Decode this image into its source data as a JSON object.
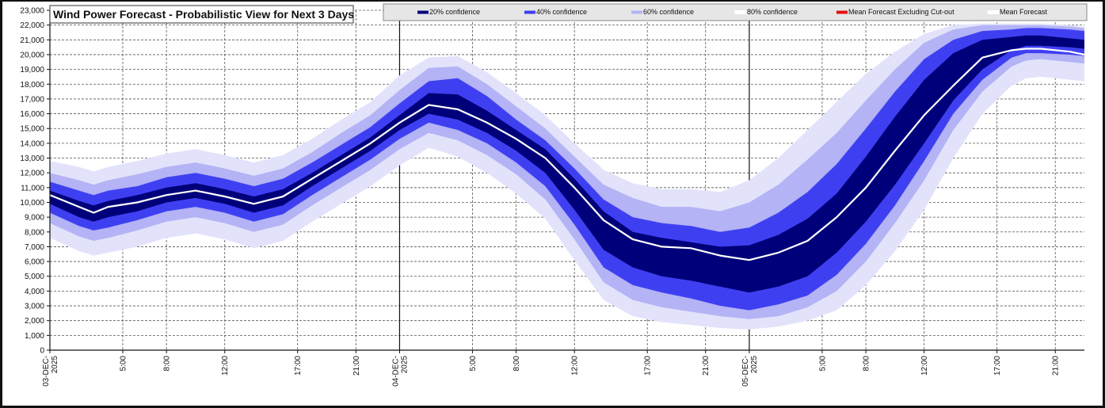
{
  "chart_data": {
    "type": "area",
    "title": "Wind Power Forecast - Probabilistic View for Next 3 Days",
    "xlabel": "",
    "ylabel": "",
    "ylim": [
      0,
      23000
    ],
    "yticks": [
      0,
      1000,
      2000,
      3000,
      4000,
      5000,
      6000,
      7000,
      8000,
      9000,
      10000,
      11000,
      12000,
      13000,
      14000,
      15000,
      16000,
      17000,
      18000,
      19000,
      20000,
      21000,
      22000,
      23000
    ],
    "xlim_hours": [
      0,
      71
    ],
    "x_ticks": [
      {
        "h": 0,
        "lines": [
          "03-DEC-",
          "2025"
        ]
      },
      {
        "h": 5,
        "lines": [
          "5:00"
        ]
      },
      {
        "h": 8,
        "lines": [
          "8:00"
        ]
      },
      {
        "h": 12,
        "lines": [
          "12:00"
        ]
      },
      {
        "h": 17,
        "lines": [
          "17:00"
        ]
      },
      {
        "h": 21,
        "lines": [
          "21:00"
        ]
      },
      {
        "h": 24,
        "lines": [
          "04-DEC-",
          "2025"
        ]
      },
      {
        "h": 29,
        "lines": [
          "5:00"
        ]
      },
      {
        "h": 32,
        "lines": [
          "8:00"
        ]
      },
      {
        "h": 36,
        "lines": [
          "12:00"
        ]
      },
      {
        "h": 41,
        "lines": [
          "17:00"
        ]
      },
      {
        "h": 45,
        "lines": [
          "21:00"
        ]
      },
      {
        "h": 48,
        "lines": [
          "05-DEC-",
          "2025"
        ]
      },
      {
        "h": 53,
        "lines": [
          "5:00"
        ]
      },
      {
        "h": 56,
        "lines": [
          "8:00"
        ]
      },
      {
        "h": 60,
        "lines": [
          "12:00"
        ]
      },
      {
        "h": 65,
        "lines": [
          "17:00"
        ]
      },
      {
        "h": 69,
        "lines": [
          "21:00"
        ]
      }
    ],
    "day_boundaries_h": [
      24,
      48
    ],
    "legend": [
      {
        "label": "20% confidence",
        "color": "#00007a"
      },
      {
        "label": "40% confidence",
        "color": "#3f3ff2"
      },
      {
        "label": "60% confidence",
        "color": "#b3b3f5"
      },
      {
        "label": "80% confidence",
        "color": "#ffffff"
      },
      {
        "label": "Mean Forecast Excluding Cut-out",
        "color": "#e01010"
      },
      {
        "label": "Mean Forecast",
        "color": "#ffffff"
      }
    ],
    "hours": [
      0,
      2,
      3,
      4,
      6,
      8,
      10,
      12,
      14,
      16,
      18,
      20,
      22,
      24,
      26,
      28,
      30,
      32,
      34,
      36,
      38,
      40,
      42,
      44,
      46,
      48,
      50,
      52,
      54,
      56,
      58,
      60,
      62,
      64,
      66,
      67,
      68,
      70,
      71
    ],
    "mean": [
      10500,
      9700,
      9300,
      9700,
      10000,
      10500,
      10800,
      10400,
      9900,
      10400,
      11600,
      12800,
      14000,
      15400,
      16600,
      16300,
      15400,
      14300,
      13000,
      11000,
      8800,
      7500,
      7000,
      6900,
      6400,
      6100,
      6600,
      7400,
      9000,
      11000,
      13500,
      15900,
      17900,
      19800,
      20300,
      20400,
      20400,
      20200,
      20000
    ],
    "series": [
      {
        "name": "20% confidence",
        "lower": [
          9900,
          9000,
          8700,
          9000,
          9400,
          10000,
          10300,
          9900,
          9300,
          9800,
          11100,
          12300,
          13500,
          14900,
          16000,
          15600,
          14700,
          13500,
          12000,
          9500,
          6800,
          5600,
          5000,
          4700,
          4300,
          3900,
          4300,
          5000,
          6600,
          8700,
          11200,
          14000,
          16900,
          19000,
          20300,
          20600,
          20600,
          20500,
          20400
        ],
        "upper": [
          10800,
          10100,
          9800,
          10100,
          10500,
          11000,
          11300,
          10900,
          10400,
          10900,
          12000,
          13200,
          14400,
          15900,
          17400,
          17300,
          16200,
          14900,
          13600,
          11600,
          9400,
          8000,
          7600,
          7300,
          7000,
          7100,
          7800,
          8900,
          10600,
          13100,
          15800,
          18300,
          20100,
          21000,
          21200,
          21300,
          21300,
          21100,
          21000
        ]
      },
      {
        "name": "40% confidence",
        "lower": [
          9300,
          8400,
          8100,
          8300,
          8800,
          9400,
          9700,
          9300,
          8700,
          9200,
          10500,
          11700,
          12900,
          14300,
          15400,
          14900,
          14000,
          12700,
          11100,
          8500,
          5600,
          4400,
          3900,
          3500,
          3000,
          2700,
          3100,
          3700,
          5100,
          7200,
          9800,
          12800,
          16000,
          18300,
          19800,
          20100,
          20100,
          20000,
          19900
        ],
        "upper": [
          11400,
          10800,
          10500,
          10800,
          11100,
          11700,
          12000,
          11600,
          11100,
          11600,
          12700,
          13900,
          15100,
          16700,
          18200,
          18400,
          17200,
          15600,
          14200,
          12300,
          10200,
          9000,
          8600,
          8400,
          8000,
          8300,
          9300,
          10700,
          12600,
          15000,
          17500,
          19700,
          21000,
          21600,
          21700,
          21800,
          21800,
          21700,
          21600
        ]
      },
      {
        "name": "60% confidence",
        "lower": [
          8600,
          7700,
          7400,
          7600,
          8100,
          8700,
          9000,
          8600,
          8000,
          8500,
          9800,
          11000,
          12200,
          13600,
          14700,
          14200,
          13200,
          11900,
          10200,
          7500,
          4600,
          3400,
          2900,
          2600,
          2300,
          2100,
          2300,
          2900,
          4000,
          6000,
          8600,
          11500,
          14900,
          17500,
          19200,
          19600,
          19700,
          19500,
          19400
        ],
        "upper": [
          12000,
          11500,
          11200,
          11500,
          11900,
          12400,
          12700,
          12300,
          11800,
          12300,
          13400,
          14700,
          15900,
          17600,
          19100,
          19200,
          18000,
          16500,
          15000,
          13100,
          11200,
          10300,
          9700,
          9700,
          9400,
          10000,
          11200,
          12900,
          14700,
          16900,
          19000,
          20800,
          21700,
          22000,
          22000,
          22000,
          22000,
          21900,
          21800
        ]
      },
      {
        "name": "80% confidence",
        "lower": [
          7600,
          6700,
          6400,
          6600,
          7000,
          7600,
          7900,
          7500,
          6900,
          7400,
          8700,
          9900,
          11100,
          12500,
          13700,
          13100,
          12000,
          10600,
          8900,
          6100,
          3400,
          2300,
          1900,
          1700,
          1500,
          1400,
          1600,
          2000,
          2700,
          4400,
          6700,
          9500,
          13000,
          16000,
          17900,
          18400,
          18500,
          18300,
          18200
        ],
        "upper": [
          12800,
          12400,
          12100,
          12400,
          12800,
          13300,
          13600,
          13200,
          12700,
          13200,
          14300,
          15600,
          16800,
          18600,
          19800,
          19900,
          18800,
          17400,
          15900,
          14000,
          12200,
          11300,
          10900,
          10900,
          10700,
          11500,
          13000,
          14900,
          16800,
          18700,
          20200,
          21400,
          22000,
          22100,
          22100,
          22100,
          22100,
          22000,
          21900
        ]
      }
    ],
    "grid": true,
    "legend_position": "top"
  }
}
